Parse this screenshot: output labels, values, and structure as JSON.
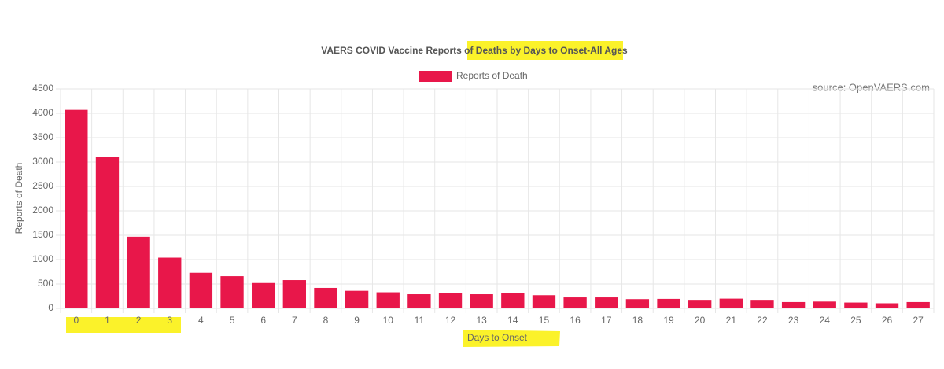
{
  "chart_data": {
    "type": "bar",
    "title": "VAERS COVID Vaccine Reports of Deaths by Days to Onset-All Ages",
    "source": "source: OpenVAERS.com",
    "x_label": "Days to Onset",
    "y_label": "Reports of Death",
    "categories": [
      "0",
      "1",
      "2",
      "3",
      "4",
      "5",
      "6",
      "7",
      "8",
      "9",
      "10",
      "11",
      "12",
      "13",
      "14",
      "15",
      "16",
      "17",
      "18",
      "19",
      "20",
      "21",
      "22",
      "23",
      "24",
      "25",
      "26",
      "27"
    ],
    "series": [
      {
        "name": "Reports of Death",
        "color": "#e8174a",
        "values": [
          4070,
          3100,
          1470,
          1040,
          730,
          660,
          520,
          580,
          420,
          360,
          330,
          290,
          320,
          290,
          315,
          270,
          225,
          225,
          190,
          195,
          175,
          200,
          175,
          130,
          140,
          120,
          105,
          130
        ]
      }
    ],
    "ylim": [
      0,
      4500
    ],
    "yticks": [
      0,
      500,
      1000,
      1500,
      2000,
      2500,
      3000,
      3500,
      4000,
      4500
    ],
    "grid": true
  }
}
